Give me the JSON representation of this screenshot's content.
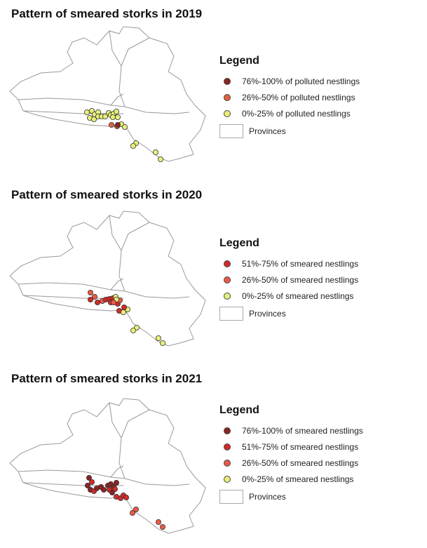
{
  "maps": [
    {
      "title": "Pattern of smeared storks in 2019",
      "legend": {
        "title": "Legend",
        "classes": [
          {
            "label": "76%-100% of polluted nestlings",
            "color": "#8b2323"
          },
          {
            "label": "26%-50% of polluted nestlings",
            "color": "#e0653a"
          },
          {
            "label": "0%-25% of polluted nestlings",
            "color": "#e8ef78"
          }
        ],
        "provinces_label": "Provinces"
      }
    },
    {
      "title": "Pattern of smeared storks in 2020",
      "legend": {
        "title": "Legend",
        "classes": [
          {
            "label": "51%-75% of smeared nestlings",
            "color": "#d42a2a"
          },
          {
            "label": "26%-50% of smeared nestlings",
            "color": "#ea5a46"
          },
          {
            "label": "0%-25% of smeared nestlings",
            "color": "#e8ef78"
          }
        ],
        "provinces_label": "Provinces"
      }
    },
    {
      "title": "Pattern of smeared storks in 2021",
      "legend": {
        "title": "Legend",
        "classes": [
          {
            "label": "76%-100% of smeared nestlings",
            "color": "#8b2323"
          },
          {
            "label": "51%-75% of smeared nestlings",
            "color": "#d42a2a"
          },
          {
            "label": "26%-50% of smeared nestlings",
            "color": "#ea5a46"
          },
          {
            "label": "0%-25% of smeared nestlings",
            "color": "#e8ef78"
          }
        ],
        "provinces_label": "Provinces"
      }
    }
  ]
}
